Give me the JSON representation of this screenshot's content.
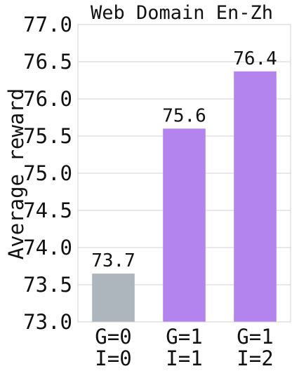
{
  "chart_data": {
    "type": "bar",
    "title": "Web Domain En-Zh",
    "xlabel": "",
    "ylabel": "Average reward",
    "ylim": [
      73.0,
      77.0
    ],
    "yticks": [
      73.0,
      73.5,
      74.0,
      74.5,
      75.0,
      75.5,
      76.0,
      76.5,
      77.0
    ],
    "ytick_labels": [
      "73.0",
      "73.5",
      "74.0",
      "74.5",
      "75.0",
      "75.5",
      "76.0",
      "76.5",
      "77.0"
    ],
    "grid": true,
    "categories": [
      {
        "line1": "G=0",
        "line2": "I=0"
      },
      {
        "line1": "G=1",
        "line2": "I=1"
      },
      {
        "line1": "G=1",
        "line2": "I=2"
      }
    ],
    "values": [
      73.65,
      75.6,
      76.37
    ],
    "data_labels": [
      "73.7",
      "75.6",
      "76.4"
    ],
    "colors": [
      "#adb5bd",
      "#b383ee",
      "#b383ee"
    ]
  }
}
